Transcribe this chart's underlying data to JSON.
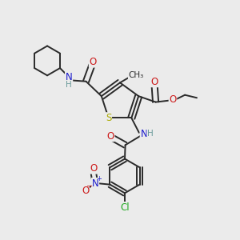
{
  "bg_color": "#ebebeb",
  "bond_color": "#2a2a2a",
  "bond_width": 1.4,
  "atom_colors": {
    "C": "#2a2a2a",
    "H": "#6a9a9a",
    "N": "#1a1acc",
    "O": "#cc1a1a",
    "S": "#aaaa00",
    "Cl": "#22aa22"
  },
  "fs": 8.5,
  "fss": 7.5
}
